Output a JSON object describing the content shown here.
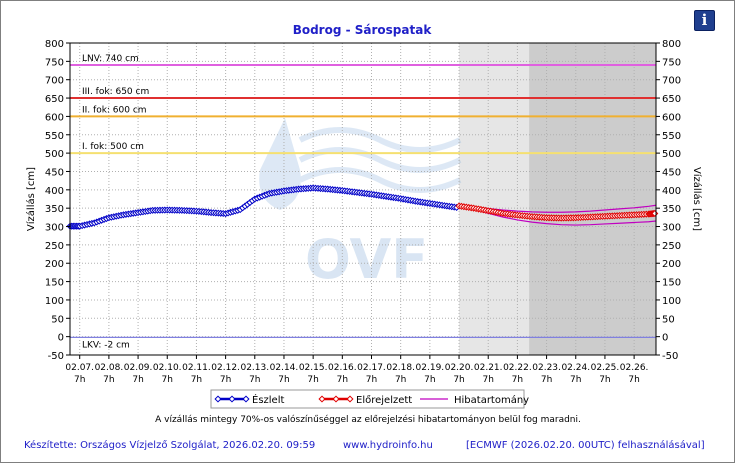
{
  "title": "Bodrog - Sárospatak",
  "info_button": "i",
  "note": "A vízállás mintegy 70%-os valószínűséggel az előrejelzési hibatartományon belül fog maradni.",
  "footer": {
    "author": "Készítette: Országos Vízjelző Szolgálat, 2026.02.20. 09:59",
    "url": "www.hydroinfo.hu",
    "source": "[ECMWF (2026.02.20. 00UTC) felhasználásával]"
  },
  "watermark": "OVF",
  "colors": {
    "observed": "#0000c8",
    "forecast": "#e00000",
    "error_band": "#c000c0",
    "lnv": "#e060e0",
    "level3": "#e03030",
    "level2": "#f0b030",
    "level1": "#f5e070",
    "lkv": "#8080e0",
    "forecast_bg": "#e6e6e6",
    "extended_bg": "#cccccc"
  },
  "chart_data": {
    "type": "line",
    "title": "Bodrog - Sárospatak",
    "ylabel": "Vízállás [cm]",
    "ylabel_right": "Vízállás [cm]",
    "ylim": [
      -50,
      800
    ],
    "yticks": [
      -50,
      0,
      50,
      100,
      150,
      200,
      250,
      300,
      350,
      400,
      450,
      500,
      550,
      600,
      650,
      700,
      750,
      800
    ],
    "xlim": [
      6.667,
      26.75
    ],
    "x_unit": "February 2026, day of month",
    "x_tick_values": [
      7,
      8,
      9,
      10,
      11,
      12,
      13,
      14,
      15,
      16,
      17,
      18,
      19,
      20,
      21,
      22,
      23,
      24,
      25,
      26
    ],
    "x_tick_labels": [
      "02.07.",
      "02.08.",
      "02.09.",
      "02.10.",
      "02.11.",
      "02.12.",
      "02.13.",
      "02.14.",
      "02.15.",
      "02.16.",
      "02.17.",
      "02.18.",
      "02.19.",
      "02.20.",
      "02.21.",
      "02.22.",
      "02.23.",
      "02.24.",
      "02.25.",
      "02.26."
    ],
    "x_tick_hour": "7h",
    "grid": true,
    "legend_position": "bottom",
    "forecast_region_start": 20.0,
    "extended_region_start": 22.4,
    "thresholds": [
      {
        "label": "LNV: 740 cm",
        "value": 740
      },
      {
        "label": "III. fok: 650 cm",
        "value": 650
      },
      {
        "label": "II. fok: 600 cm",
        "value": 600
      },
      {
        "label": "I. fok: 500 cm",
        "value": 500
      },
      {
        "label": "LKV: -2 cm",
        "value": -2
      }
    ],
    "series": [
      {
        "name": "Észlelt",
        "x": [
          6.67,
          7.0,
          7.5,
          8.0,
          8.5,
          9.0,
          9.5,
          10.0,
          10.5,
          11.0,
          11.5,
          12.0,
          12.5,
          13.0,
          13.5,
          14.0,
          14.5,
          15.0,
          15.5,
          16.0,
          16.5,
          17.0,
          17.5,
          18.0,
          18.5,
          19.0,
          19.5,
          20.0
        ],
        "values": [
          301,
          301,
          310,
          324,
          332,
          338,
          344,
          345,
          344,
          342,
          338,
          335,
          346,
          375,
          390,
          397,
          402,
          405,
          402,
          398,
          393,
          388,
          382,
          376,
          369,
          363,
          357,
          351
        ]
      },
      {
        "name": "Előrejelzett",
        "x": [
          20.0,
          20.5,
          21.0,
          21.5,
          22.0,
          22.5,
          23.0,
          23.5,
          24.0,
          24.5,
          25.0,
          25.5,
          26.0,
          26.5,
          26.75
        ],
        "values": [
          356,
          350,
          343,
          336,
          331,
          327,
          324,
          323,
          324,
          326,
          328,
          330,
          332,
          334,
          336
        ]
      },
      {
        "name": "Hibatartomány",
        "x": [
          20.0,
          20.5,
          21.0,
          21.5,
          22.0,
          22.5,
          23.0,
          23.5,
          24.0,
          24.5,
          25.0,
          25.5,
          26.0,
          26.5,
          26.75
        ],
        "upper": [
          356,
          353,
          349,
          345,
          342,
          340,
          339,
          339,
          340,
          342,
          345,
          348,
          351,
          355,
          358
        ],
        "lower": [
          356,
          347,
          336,
          326,
          318,
          312,
          308,
          305,
          304,
          305,
          307,
          309,
          311,
          313,
          315
        ]
      }
    ]
  }
}
